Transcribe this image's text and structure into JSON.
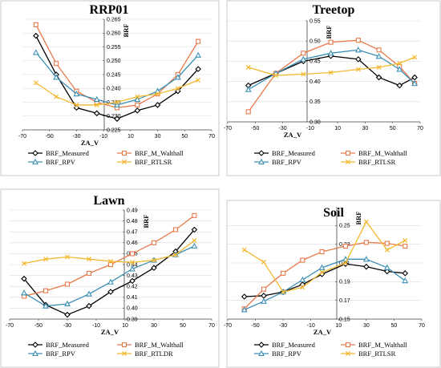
{
  "chart_data": [
    {
      "type": "line",
      "title": "RRP01",
      "xlabel": "ZA_V",
      "ylabel": "BRF",
      "xlim": [
        -70,
        70
      ],
      "xticks": [
        -70,
        -50,
        -30,
        -10,
        10,
        30,
        50,
        70
      ],
      "ylim": [
        0.225,
        0.265
      ],
      "yticks": [
        "0.225",
        "0.230",
        "0.235",
        "0.240",
        "0.245",
        "0.250",
        "0.255",
        "0.260",
        "0.265"
      ],
      "series": [
        {
          "name": "BRF_Measured",
          "color": "#000000",
          "marker": "diamond",
          "x": [
            -60,
            -45,
            -30,
            -15,
            0,
            15,
            30,
            45,
            60
          ],
          "y": [
            0.259,
            0.245,
            0.233,
            0.231,
            0.229,
            0.232,
            0.234,
            0.239,
            0.247
          ]
        },
        {
          "name": "BRF_M_Walthall",
          "color": "#e87a4a",
          "marker": "square",
          "x": [
            -60,
            -45,
            -30,
            -15,
            0,
            15,
            30,
            45,
            60
          ],
          "y": [
            0.263,
            0.249,
            0.239,
            0.235,
            0.233,
            0.234,
            0.238,
            0.245,
            0.257
          ]
        },
        {
          "name": "BRF_RPV",
          "color": "#3b8fb4",
          "marker": "triangle",
          "x": [
            -60,
            -45,
            -30,
            -15,
            0,
            15,
            30,
            45,
            60
          ],
          "y": [
            0.253,
            0.244,
            0.238,
            0.236,
            0.234,
            0.236,
            0.239,
            0.244,
            0.252
          ]
        },
        {
          "name": "BRF_RTLSR",
          "color": "#f2b830",
          "marker": "x",
          "x": [
            -60,
            -45,
            -30,
            -15,
            0,
            15,
            30,
            45,
            60
          ],
          "y": [
            0.242,
            0.237,
            0.234,
            0.234,
            0.235,
            0.237,
            0.238,
            0.24,
            0.243
          ]
        }
      ]
    },
    {
      "type": "line",
      "title": "Treetop",
      "xlabel": "ZA_V",
      "ylabel": "BRF",
      "xlim": [
        -70,
        70
      ],
      "xticks": [
        -70,
        -50,
        -30,
        -10,
        10,
        30,
        50,
        70
      ],
      "ylim": [
        0.3,
        0.55
      ],
      "yticks": [
        "0.30",
        "0.35",
        "0.40",
        "0.45",
        "0.50",
        "0.55"
      ],
      "series": [
        {
          "name": "BRF_Measured",
          "color": "#000000",
          "marker": "diamond",
          "x": [
            -55,
            -35,
            -15,
            5,
            25,
            40,
            55,
            66
          ],
          "y": [
            0.39,
            0.42,
            0.45,
            0.463,
            0.455,
            0.41,
            0.39,
            0.41
          ]
        },
        {
          "name": "BRF_M_Walthall",
          "color": "#e87a4a",
          "marker": "square",
          "x": [
            -55,
            -35,
            -15,
            5,
            25,
            40,
            55,
            66
          ],
          "y": [
            0.325,
            0.42,
            0.47,
            0.497,
            0.502,
            0.478,
            0.437,
            0.395
          ]
        },
        {
          "name": "BRF_RPV",
          "color": "#3b8fb4",
          "marker": "triangle",
          "x": [
            -55,
            -35,
            -15,
            5,
            25,
            40,
            55,
            66
          ],
          "y": [
            0.38,
            0.42,
            0.455,
            0.47,
            0.478,
            0.462,
            0.43,
            0.395
          ]
        },
        {
          "name": "BRF_RTLSR",
          "color": "#f2b830",
          "marker": "x",
          "x": [
            -55,
            -35,
            -15,
            5,
            25,
            40,
            55,
            66
          ],
          "y": [
            0.435,
            0.415,
            0.418,
            0.422,
            0.43,
            0.435,
            0.445,
            0.46
          ]
        }
      ]
    },
    {
      "type": "line",
      "title": "Lawn",
      "xlabel": "ZA_V",
      "ylabel": "BRF",
      "xlim": [
        -70,
        70
      ],
      "xticks": [
        -70,
        -50,
        -30,
        -10,
        10,
        30,
        50,
        70
      ],
      "ylim": [
        0.39,
        0.49
      ],
      "yticks": [
        "0.39",
        "0.40",
        "0.41",
        "0.42",
        "0.43",
        "0.44",
        "0.45",
        "0.46",
        "0.47",
        "0.48",
        "0.49"
      ],
      "series": [
        {
          "name": "BRF_Measured",
          "color": "#000000",
          "marker": "diamond",
          "x": [
            -60,
            -45,
            -30,
            -15,
            0,
            15,
            30,
            45,
            58
          ],
          "y": [
            0.427,
            0.403,
            0.394,
            0.402,
            0.415,
            0.425,
            0.437,
            0.452,
            0.472
          ]
        },
        {
          "name": "BRF_M_Walthall",
          "color": "#e87a4a",
          "marker": "square",
          "x": [
            -60,
            -45,
            -30,
            -15,
            0,
            15,
            30,
            45,
            58
          ],
          "y": [
            0.411,
            0.416,
            0.422,
            0.432,
            0.44,
            0.45,
            0.46,
            0.472,
            0.485
          ]
        },
        {
          "name": "BRF_RPV",
          "color": "#3b8fb4",
          "marker": "triangle",
          "x": [
            -60,
            -45,
            -30,
            -15,
            0,
            15,
            30,
            45,
            58
          ],
          "y": [
            0.414,
            0.402,
            0.404,
            0.413,
            0.424,
            0.436,
            0.444,
            0.449,
            0.457
          ]
        },
        {
          "name": "BRF_RTLDR",
          "color": "#f2b830",
          "marker": "x",
          "x": [
            -60,
            -45,
            -30,
            -15,
            0,
            15,
            30,
            45,
            58
          ],
          "y": [
            0.441,
            0.445,
            0.447,
            0.445,
            0.443,
            0.442,
            0.444,
            0.449,
            0.462
          ]
        }
      ]
    },
    {
      "type": "line",
      "title": "Soil",
      "xlabel": "ZA_V",
      "ylabel": "BRF",
      "xlim": [
        -70,
        70
      ],
      "xticks": [
        -70,
        -50,
        -30,
        -10,
        10,
        30,
        50,
        70
      ],
      "ylim": [
        0.15,
        0.27
      ],
      "yticks": [
        "0.15",
        "0.17",
        "0.19",
        "0.21",
        "0.23",
        "0.25"
      ],
      "series": [
        {
          "name": "BRF_Measured",
          "color": "#000000",
          "marker": "diamond",
          "x": [
            -58,
            -44,
            -30,
            -16,
            -2,
            15,
            30,
            45,
            58
          ],
          "y": [
            0.174,
            0.175,
            0.179,
            0.187,
            0.198,
            0.209,
            0.206,
            0.201,
            0.199
          ]
        },
        {
          "name": "BRF_M_Walthall",
          "color": "#e87a4a",
          "marker": "square",
          "x": [
            -58,
            -44,
            -30,
            -16,
            -2,
            15,
            30,
            45,
            58
          ],
          "y": [
            0.161,
            0.182,
            0.199,
            0.213,
            0.222,
            0.228,
            0.232,
            0.231,
            0.228
          ]
        },
        {
          "name": "BRF_RPV",
          "color": "#3b8fb4",
          "marker": "triangle",
          "x": [
            -58,
            -44,
            -30,
            -16,
            -2,
            15,
            30,
            45,
            58
          ],
          "y": [
            0.16,
            0.169,
            0.179,
            0.192,
            0.205,
            0.214,
            0.214,
            0.205,
            0.191
          ]
        },
        {
          "name": "BRF_RTLSR",
          "color": "#f2b830",
          "marker": "x",
          "x": [
            -58,
            -44,
            -30,
            -16,
            -2,
            15,
            30,
            45,
            58
          ],
          "y": [
            0.224,
            0.211,
            0.179,
            0.184,
            0.2,
            0.21,
            0.254,
            0.224,
            0.234
          ]
        }
      ]
    }
  ]
}
